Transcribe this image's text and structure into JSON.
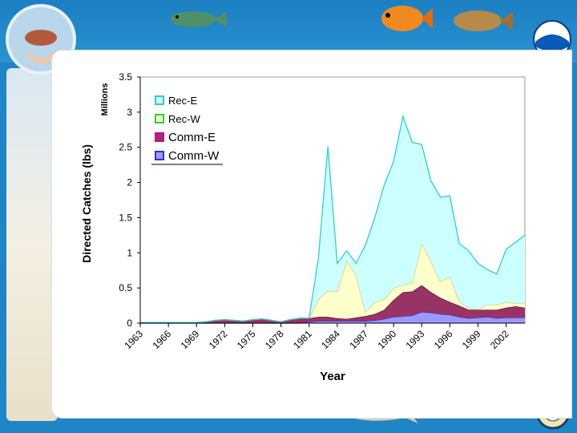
{
  "chart_data": {
    "type": "area",
    "stacked": true,
    "xlabel": "Year",
    "ylabel": "Directed Catches (lbs)",
    "yunit_label": "Millions",
    "ylim": [
      0,
      3.5
    ],
    "yticks": [
      "0",
      "0.5",
      "1",
      "1.5",
      "2",
      "2.5",
      "3",
      "3.5"
    ],
    "x_tick_labels": [
      "1963",
      "1966",
      "1969",
      "1972",
      "1975",
      "1978",
      "1981",
      "1984",
      "1987",
      "1990",
      "1993",
      "1996",
      "1999",
      "2002"
    ],
    "legend_position": "top-left",
    "x": [
      1963,
      1964,
      1965,
      1966,
      1967,
      1968,
      1969,
      1970,
      1971,
      1972,
      1973,
      1974,
      1975,
      1976,
      1977,
      1978,
      1979,
      1980,
      1981,
      1982,
      1983,
      1984,
      1985,
      1986,
      1987,
      1988,
      1989,
      1990,
      1991,
      1992,
      1993,
      1994,
      1995,
      1996,
      1997,
      1998,
      1999,
      2000,
      2001,
      2002,
      2003,
      2004
    ],
    "series": [
      {
        "name": "Comm-W",
        "color": "#9999ff",
        "values": [
          0,
          0,
          0,
          0,
          0,
          0,
          0,
          0,
          0,
          0,
          0,
          0,
          0,
          0,
          0,
          0,
          0,
          0,
          0.02,
          0.03,
          0.03,
          0.03,
          0.03,
          0.03,
          0.03,
          0.04,
          0.06,
          0.09,
          0.1,
          0.11,
          0.16,
          0.15,
          0.13,
          0.12,
          0.09,
          0.07,
          0.08,
          0.09,
          0.07,
          0.08,
          0.08,
          0.08
        ]
      },
      {
        "name": "Comm-E",
        "color": "#993366",
        "values": [
          0.01,
          0.01,
          0.01,
          0.01,
          0.01,
          0.01,
          0.01,
          0.02,
          0.04,
          0.05,
          0.04,
          0.03,
          0.05,
          0.06,
          0.04,
          0.02,
          0.05,
          0.07,
          0.05,
          0.06,
          0.06,
          0.04,
          0.03,
          0.05,
          0.07,
          0.09,
          0.13,
          0.24,
          0.34,
          0.34,
          0.38,
          0.29,
          0.23,
          0.18,
          0.16,
          0.12,
          0.11,
          0.1,
          0.12,
          0.14,
          0.16,
          0.14
        ]
      },
      {
        "name": "Rec-W",
        "color": "#ffffcc",
        "values": [
          0,
          0,
          0,
          0,
          0,
          0,
          0,
          0,
          0,
          0,
          0,
          0,
          0,
          0,
          0,
          0,
          0,
          0,
          0,
          0.25,
          0.37,
          0.38,
          0.83,
          0.6,
          0.06,
          0.17,
          0.15,
          0.17,
          0.1,
          0.12,
          0.6,
          0.43,
          0.23,
          0.36,
          0.06,
          0.02,
          0.01,
          0.07,
          0.07,
          0.08,
          0.04,
          0.06
        ]
      },
      {
        "name": "Rec-E",
        "color": "#ccffff",
        "values": [
          0,
          0,
          0,
          0,
          0,
          0,
          0,
          0,
          0,
          0,
          0,
          0,
          0,
          0,
          0,
          0,
          0,
          0,
          0,
          0.6,
          2.05,
          0.4,
          0.14,
          0.17,
          0.95,
          1.2,
          1.62,
          1.8,
          2.4,
          2.0,
          1.4,
          1.15,
          1.2,
          1.15,
          0.82,
          0.82,
          0.65,
          0.5,
          0.44,
          0.75,
          0.87,
          0.97
        ]
      }
    ]
  }
}
